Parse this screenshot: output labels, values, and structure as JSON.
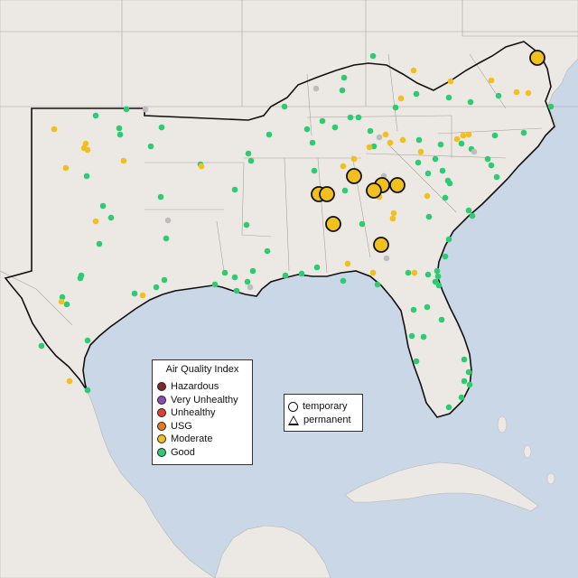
{
  "legend": {
    "title": "Air Quality Index",
    "categories": [
      {
        "label": "Hazardous",
        "color": "#7e2a2a"
      },
      {
        "label": "Very Unhealthy",
        "color": "#8e4bb3"
      },
      {
        "label": "Unhealthy",
        "color": "#e0402b"
      },
      {
        "label": "USG",
        "color": "#e87a1b"
      },
      {
        "label": "Moderate",
        "color": "#f2c01c"
      },
      {
        "label": "Good",
        "color": "#2ecc71"
      }
    ]
  },
  "monitor_types": {
    "temporary": "temporary",
    "permanent": "permanent"
  },
  "colors": {
    "ocean": "#c9d7e6",
    "land": "#ece8e4",
    "no_data": "#bdbdbd"
  }
}
